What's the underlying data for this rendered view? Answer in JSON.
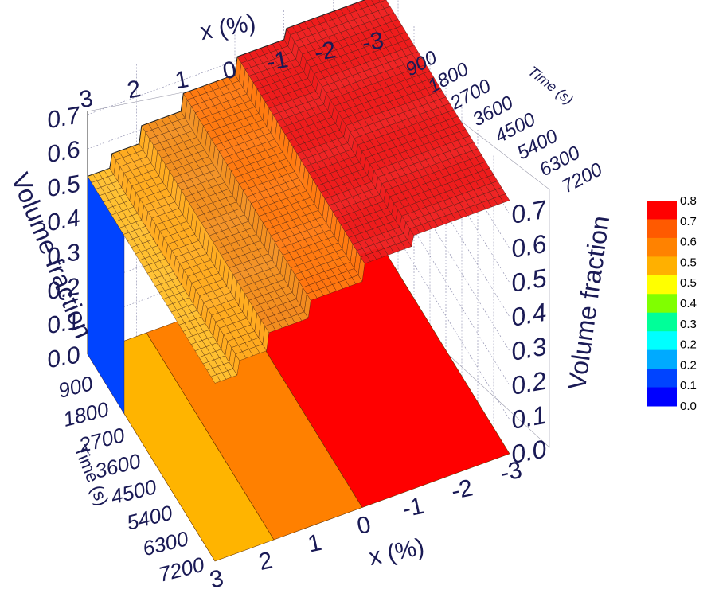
{
  "chart_data": {
    "type": "surface3d",
    "x_axis": {
      "title": "x (%)",
      "ticks": [
        "3",
        "2",
        "1",
        "0",
        "-1",
        "-2",
        "-3"
      ]
    },
    "time_axis": {
      "title": "Time (s)",
      "ticks": [
        "900",
        "1800",
        "2700",
        "3600",
        "4500",
        "5400",
        "6300",
        "7200"
      ]
    },
    "z_axis": {
      "title": "Volume fraction",
      "ticks": [
        "0.0",
        "0.1",
        "0.2",
        "0.3",
        "0.4",
        "0.5",
        "0.6",
        "0.7"
      ]
    },
    "zlim": [
      0,
      0.8
    ],
    "surface_profile": {
      "x": [
        3,
        2.55,
        2.5,
        1.95,
        1.9,
        1.1,
        1.05,
        0.0,
        -0.05,
        -1.0,
        -1.05,
        -3.0
      ],
      "volume_fraction": [
        0.52,
        0.52,
        0.56,
        0.56,
        0.61,
        0.61,
        0.66,
        0.66,
        0.71,
        0.71,
        0.74,
        0.74
      ]
    },
    "projection_bands": [
      {
        "x_from": 3,
        "x_to": 1.8,
        "color": "#ffb400"
      },
      {
        "x_from": 1.8,
        "x_to": 0.0,
        "color": "#ff8000"
      },
      {
        "x_from": 0.0,
        "x_to": -3,
        "color": "#ff0000"
      }
    ],
    "colorbar": {
      "labels": [
        "0.8",
        "0.7",
        "0.6",
        "0.5",
        "0.5",
        "0.4",
        "0.3",
        "0.2",
        "0.2",
        "0.1",
        "0.0"
      ],
      "colors": [
        "#ff0000",
        "#ff5a00",
        "#ff8200",
        "#ffb000",
        "#ffff00",
        "#80ff00",
        "#00ff99",
        "#00ffff",
        "#00aaff",
        "#0044ff",
        "#0000ff"
      ]
    }
  }
}
